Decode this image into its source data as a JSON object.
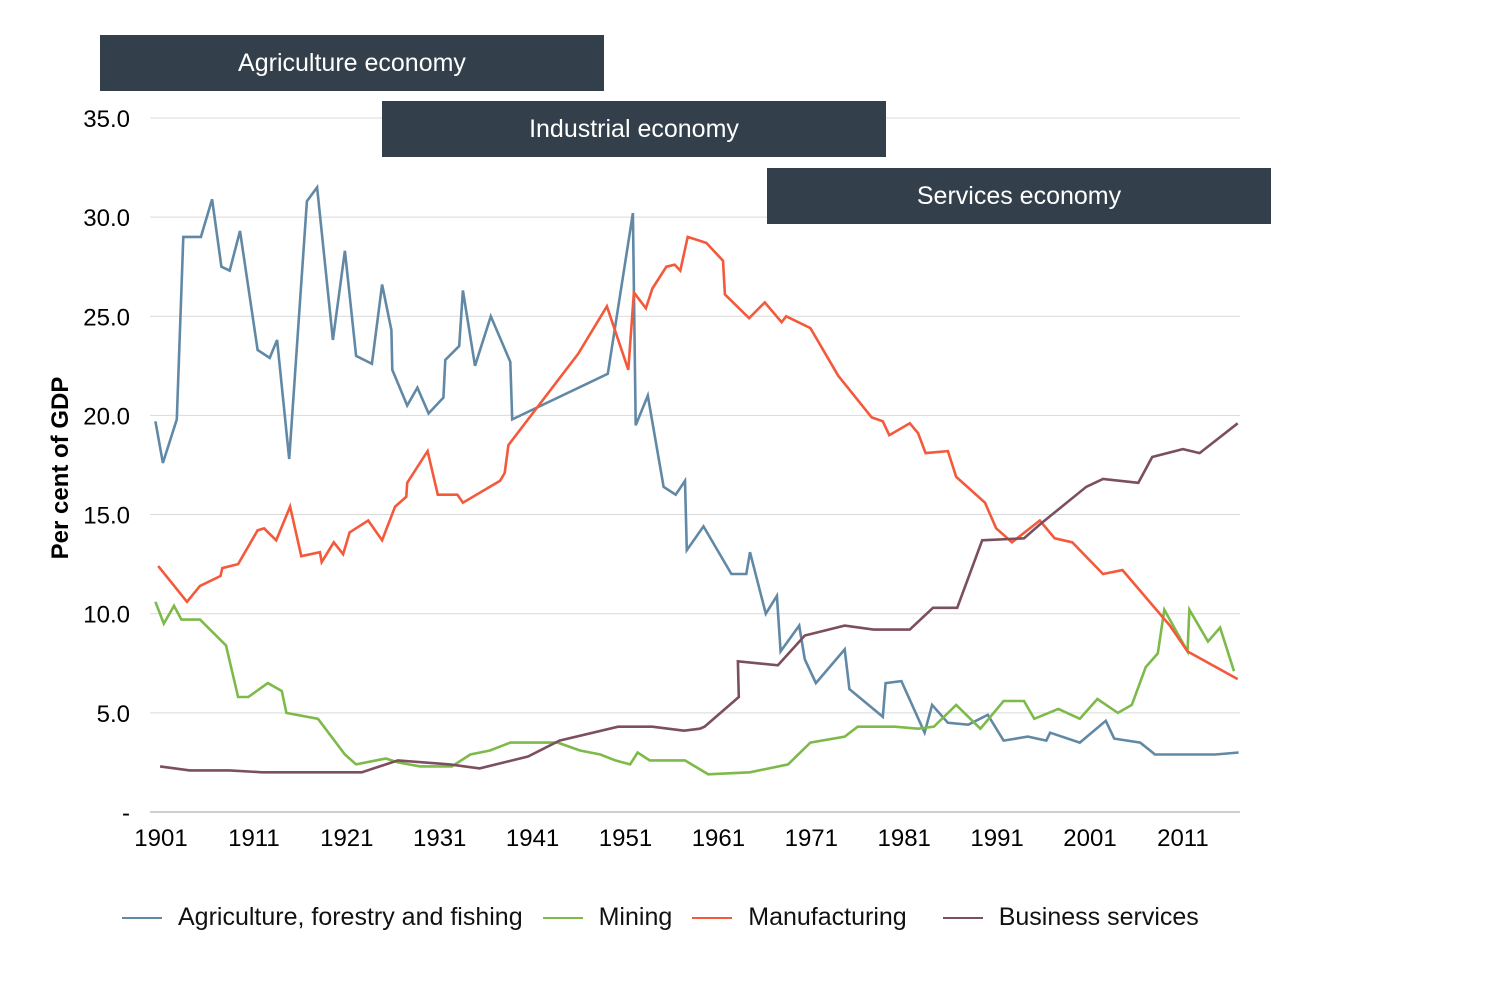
{
  "chart_data": {
    "type": "line",
    "title": "",
    "xlabel": "",
    "ylabel": "Per cent of GDP",
    "xlim": [
      1901,
      2017
    ],
    "ylim": [
      0,
      35
    ],
    "x_ticks": [
      "1901",
      "1911",
      "1921",
      "1931",
      "1941",
      "1951",
      "1961",
      "1971",
      "1981",
      "1991",
      "2001",
      "2011"
    ],
    "y_ticks": [
      "-",
      "5.0",
      "10.0",
      "15.0",
      "20.0",
      "25.0",
      "30.0",
      "35.0"
    ],
    "grid": true,
    "legend_position": "bottom",
    "annotations": [
      {
        "label": "Agriculture economy"
      },
      {
        "label": "Industrial economy"
      },
      {
        "label": "Services economy"
      }
    ],
    "series": [
      {
        "name": "Agriculture, forestry and fishing",
        "color": "#6189a6",
        "points": [
          [
            1900.4,
            19.7
          ],
          [
            1901.2,
            17.6
          ],
          [
            1902.7,
            19.8
          ],
          [
            1903.4,
            29.0
          ],
          [
            1905.3,
            29.0
          ],
          [
            1906.5,
            30.9
          ],
          [
            1907.5,
            27.5
          ],
          [
            1908.4,
            27.3
          ],
          [
            1909.5,
            29.3
          ],
          [
            1911.4,
            23.3
          ],
          [
            1912.7,
            22.9
          ],
          [
            1913.5,
            23.8
          ],
          [
            1914.8,
            17.8
          ],
          [
            1916.7,
            30.8
          ],
          [
            1917.8,
            31.5
          ],
          [
            1919.5,
            23.8
          ],
          [
            1920.8,
            28.3
          ],
          [
            1922,
            23.0
          ],
          [
            1923.7,
            22.6
          ],
          [
            1924.8,
            26.6
          ],
          [
            1925.8,
            24.3
          ],
          [
            1925.9,
            22.3
          ],
          [
            1927.5,
            20.5
          ],
          [
            1928.6,
            21.4
          ],
          [
            1929.8,
            20.1
          ],
          [
            1931.4,
            20.9
          ],
          [
            1931.6,
            22.8
          ],
          [
            1933.1,
            23.5
          ],
          [
            1933.5,
            26.3
          ],
          [
            1934.8,
            22.5
          ],
          [
            1936.5,
            25.0
          ],
          [
            1938.6,
            22.7
          ],
          [
            1938.8,
            19.8
          ],
          [
            1949.1,
            22.1
          ],
          [
            1951.8,
            30.2
          ],
          [
            1952.1,
            19.5
          ],
          [
            1953.4,
            21.0
          ],
          [
            1955.1,
            16.4
          ],
          [
            1956.4,
            16.0
          ],
          [
            1957.4,
            16.7
          ],
          [
            1957.6,
            13.2
          ],
          [
            1959.4,
            14.4
          ],
          [
            1962.4,
            12.0
          ],
          [
            1964,
            12.0
          ],
          [
            1964.4,
            13.1
          ],
          [
            1966.1,
            10.0
          ],
          [
            1967.3,
            10.9
          ],
          [
            1967.7,
            8.1
          ],
          [
            1969.7,
            9.4
          ],
          [
            1970.3,
            7.7
          ],
          [
            1971.5,
            6.5
          ],
          [
            1974.6,
            8.2
          ],
          [
            1975.1,
            6.2
          ],
          [
            1978.7,
            4.8
          ],
          [
            1979,
            6.5
          ],
          [
            1980.7,
            6.6
          ],
          [
            1983.2,
            4.0
          ],
          [
            1984,
            5.4
          ],
          [
            1985.7,
            4.5
          ],
          [
            1987.9,
            4.4
          ],
          [
            1990,
            4.9
          ],
          [
            1991.7,
            3.6
          ],
          [
            1994.3,
            3.8
          ],
          [
            1996.3,
            3.6
          ],
          [
            1996.7,
            4.0
          ],
          [
            1999.9,
            3.5
          ],
          [
            2002.7,
            4.6
          ],
          [
            2003.6,
            3.7
          ],
          [
            2006.4,
            3.5
          ],
          [
            2008,
            2.9
          ],
          [
            2014.5,
            2.9
          ],
          [
            2017,
            3.0
          ]
        ]
      },
      {
        "name": "Mining",
        "color": "#7dba4a",
        "points": [
          [
            1900.4,
            10.6
          ],
          [
            1901.3,
            9.5
          ],
          [
            1902.4,
            10.4
          ],
          [
            1903.2,
            9.7
          ],
          [
            1905.2,
            9.7
          ],
          [
            1908,
            8.4
          ],
          [
            1909.3,
            5.8
          ],
          [
            1910.4,
            5.8
          ],
          [
            1912.5,
            6.5
          ],
          [
            1914,
            6.1
          ],
          [
            1914.5,
            5.0
          ],
          [
            1917.9,
            4.7
          ],
          [
            1920.8,
            2.9
          ],
          [
            1922,
            2.4
          ],
          [
            1925.2,
            2.7
          ],
          [
            1926.5,
            2.5
          ],
          [
            1928.9,
            2.3
          ],
          [
            1932.3,
            2.3
          ],
          [
            1934.3,
            2.9
          ],
          [
            1936.4,
            3.1
          ],
          [
            1938.6,
            3.5
          ],
          [
            1940.7,
            3.5
          ],
          [
            1943.7,
            3.5
          ],
          [
            1946.1,
            3.1
          ],
          [
            1948.3,
            2.9
          ],
          [
            1949.9,
            2.6
          ],
          [
            1951.5,
            2.4
          ],
          [
            1952.3,
            3.0
          ],
          [
            1953.6,
            2.6
          ],
          [
            1957.4,
            2.6
          ],
          [
            1959.9,
            1.9
          ],
          [
            1964.4,
            2.0
          ],
          [
            1968.5,
            2.4
          ],
          [
            1970.9,
            3.5
          ],
          [
            1974.6,
            3.8
          ],
          [
            1976,
            4.3
          ],
          [
            1980,
            4.3
          ],
          [
            1982.5,
            4.2
          ],
          [
            1984.2,
            4.3
          ],
          [
            1986.6,
            5.4
          ],
          [
            1989.2,
            4.2
          ],
          [
            1991.7,
            5.6
          ],
          [
            1993.9,
            5.6
          ],
          [
            1995,
            4.7
          ],
          [
            1997.6,
            5.2
          ],
          [
            1999.9,
            4.7
          ],
          [
            2001.8,
            5.7
          ],
          [
            2004,
            5.0
          ],
          [
            2005.5,
            5.4
          ],
          [
            2007,
            7.3
          ],
          [
            2008.3,
            8.0
          ],
          [
            2009,
            10.2
          ],
          [
            2011.5,
            8.1
          ],
          [
            2011.7,
            10.2
          ],
          [
            2013.7,
            8.6
          ],
          [
            2015,
            9.3
          ],
          [
            2016.5,
            7.1
          ]
        ]
      },
      {
        "name": "Manufacturing",
        "color": "#f4593b",
        "points": [
          [
            1900.7,
            12.4
          ],
          [
            1903.8,
            10.6
          ],
          [
            1905.2,
            11.4
          ],
          [
            1907.4,
            11.9
          ],
          [
            1907.6,
            12.3
          ],
          [
            1909.3,
            12.5
          ],
          [
            1911.4,
            14.2
          ],
          [
            1912.1,
            14.3
          ],
          [
            1913.4,
            13.7
          ],
          [
            1914.9,
            15.4
          ],
          [
            1916.1,
            12.9
          ],
          [
            1918.1,
            13.1
          ],
          [
            1918.3,
            12.6
          ],
          [
            1919.6,
            13.6
          ],
          [
            1920.6,
            13.0
          ],
          [
            1921.3,
            14.1
          ],
          [
            1923.3,
            14.7
          ],
          [
            1924.8,
            13.7
          ],
          [
            1926.2,
            15.4
          ],
          [
            1927.4,
            15.9
          ],
          [
            1927.5,
            16.6
          ],
          [
            1929.7,
            18.2
          ],
          [
            1930.8,
            16.0
          ],
          [
            1932.9,
            16.0
          ],
          [
            1933.5,
            15.6
          ],
          [
            1937.5,
            16.7
          ],
          [
            1938,
            17.1
          ],
          [
            1938.4,
            18.5
          ],
          [
            1945.9,
            23.1
          ],
          [
            1949,
            25.5
          ],
          [
            1951.3,
            22.3
          ],
          [
            1951.9,
            26.2
          ],
          [
            1953.2,
            25.4
          ],
          [
            1953.9,
            26.4
          ],
          [
            1955.4,
            27.5
          ],
          [
            1956.3,
            27.6
          ],
          [
            1956.9,
            27.3
          ],
          [
            1957.7,
            29.0
          ],
          [
            1959.7,
            28.7
          ],
          [
            1961.5,
            27.8
          ],
          [
            1961.7,
            26.1
          ],
          [
            1964.3,
            24.9
          ],
          [
            1966,
            25.7
          ],
          [
            1967.8,
            24.7
          ],
          [
            1968.3,
            25.0
          ],
          [
            1970.9,
            24.4
          ],
          [
            1973.9,
            22.0
          ],
          [
            1977.5,
            19.9
          ],
          [
            1978.7,
            19.7
          ],
          [
            1979.4,
            19.0
          ],
          [
            1981.6,
            19.6
          ],
          [
            1982.5,
            19.1
          ],
          [
            1983.3,
            18.1
          ],
          [
            1985.7,
            18.2
          ],
          [
            1986.6,
            16.9
          ],
          [
            1989.7,
            15.6
          ],
          [
            1990.9,
            14.3
          ],
          [
            1992.6,
            13.6
          ],
          [
            1995.6,
            14.7
          ],
          [
            1997.2,
            13.8
          ],
          [
            1999.1,
            13.6
          ],
          [
            2002.4,
            12.0
          ],
          [
            2004.5,
            12.2
          ],
          [
            2009.6,
            9.4
          ],
          [
            2011.5,
            8.1
          ],
          [
            2016.9,
            6.7
          ]
        ]
      },
      {
        "name": "Business services",
        "color": "#7b4f5e",
        "points": [
          [
            1900.9,
            2.3
          ],
          [
            1904.1,
            2.1
          ],
          [
            1908.4,
            2.1
          ],
          [
            1911.9,
            2.0
          ],
          [
            1922.6,
            2.0
          ],
          [
            1926.5,
            2.6
          ],
          [
            1932.1,
            2.4
          ],
          [
            1935.3,
            2.2
          ],
          [
            1940.5,
            2.8
          ],
          [
            1943.9,
            3.6
          ],
          [
            1950.2,
            4.3
          ],
          [
            1953.9,
            4.3
          ],
          [
            1957.3,
            4.1
          ],
          [
            1959,
            4.2
          ],
          [
            1959.5,
            4.3
          ],
          [
            1963.2,
            5.8
          ],
          [
            1963.1,
            7.6
          ],
          [
            1967.4,
            7.4
          ],
          [
            1970.3,
            8.9
          ],
          [
            1974.6,
            9.4
          ],
          [
            1977.7,
            9.2
          ],
          [
            1981.6,
            9.2
          ],
          [
            1984.1,
            10.3
          ],
          [
            1986.7,
            10.3
          ],
          [
            1989.4,
            13.7
          ],
          [
            1993.9,
            13.8
          ],
          [
            1995.6,
            14.5
          ],
          [
            2000.6,
            16.4
          ],
          [
            2002.4,
            16.8
          ],
          [
            2006.2,
            16.6
          ],
          [
            2007.7,
            17.9
          ],
          [
            2011,
            18.3
          ],
          [
            2012.8,
            18.1
          ],
          [
            2016.9,
            19.6
          ]
        ]
      }
    ]
  }
}
